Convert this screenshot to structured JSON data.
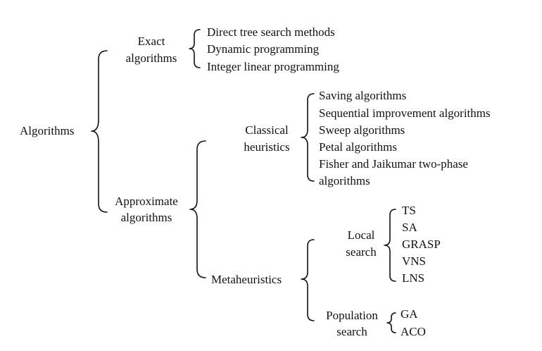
{
  "diagram": {
    "root": "Algorithms",
    "exact": {
      "label_lines": [
        "Exact",
        "algorithms"
      ],
      "items": [
        "Direct tree search methods",
        "Dynamic programming",
        "Integer linear programming"
      ]
    },
    "approximate": {
      "label_lines": [
        "Approximate",
        "algorithms"
      ],
      "classical": {
        "label_lines": [
          "Classical",
          "heuristics"
        ],
        "items": [
          "Saving algorithms",
          "Sequential improvement algorithms",
          "Sweep algorithms",
          "Petal algorithms",
          "Fisher and Jaikumar two-phase",
          "algorithms"
        ]
      },
      "metaheuristics": {
        "label": "Metaheuristics",
        "local": {
          "label_lines": [
            "Local",
            "search"
          ],
          "items": [
            "TS",
            "SA",
            "GRASP",
            "VNS",
            "LNS"
          ]
        },
        "population": {
          "label_lines": [
            "Population",
            "search"
          ],
          "items": [
            "GA",
            "ACO"
          ]
        }
      }
    }
  }
}
